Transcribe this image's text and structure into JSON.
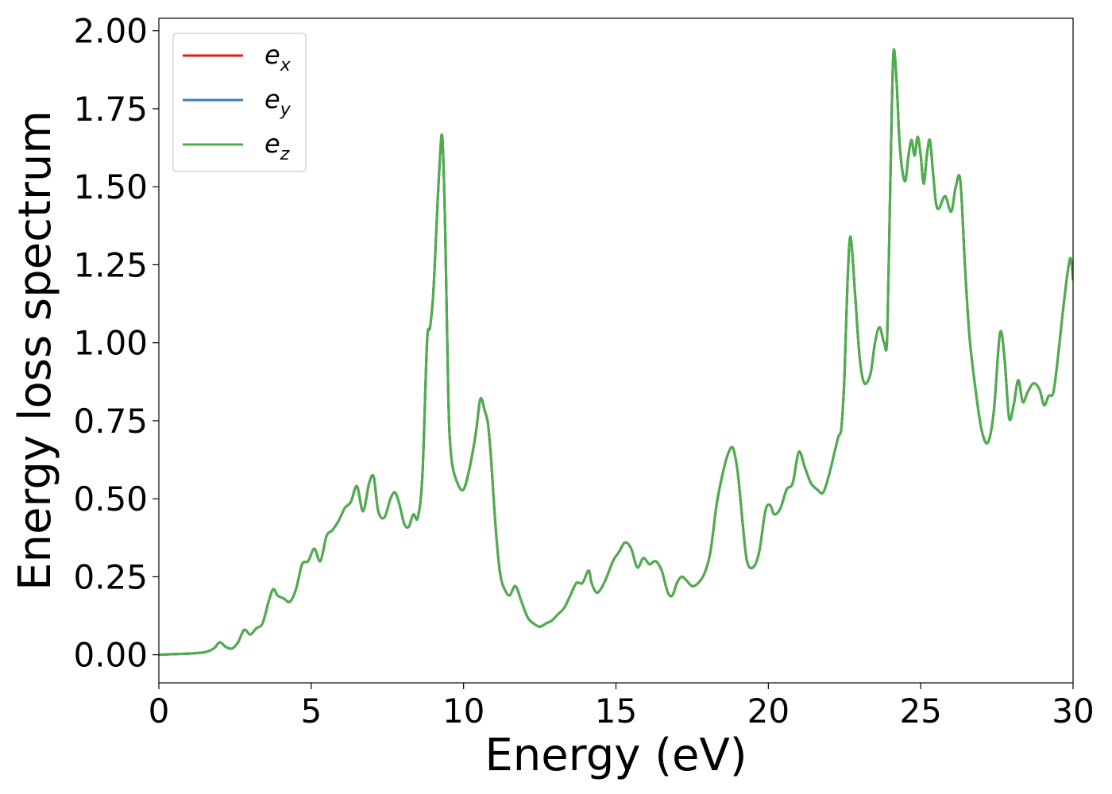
{
  "chart_data": {
    "type": "line",
    "title": "",
    "xlabel": "Energy (eV)",
    "ylabel": "Energy loss spectrum",
    "xlim": [
      0,
      30
    ],
    "ylim": [
      -0.09,
      2.04
    ],
    "xticks": [
      0,
      5,
      10,
      15,
      20,
      25,
      30
    ],
    "xtick_labels": [
      "0",
      "5",
      "10",
      "15",
      "20",
      "25",
      "30"
    ],
    "yticks": [
      0,
      0.25,
      0.5,
      0.75,
      1.0,
      1.25,
      1.5,
      1.75,
      2.0
    ],
    "ytick_labels": [
      "0.00",
      "0.25",
      "0.50",
      "0.75",
      "1.00",
      "1.25",
      "1.50",
      "1.75",
      "2.00"
    ],
    "grid": false,
    "legend_position": "top-left",
    "series": [
      {
        "name": "e",
        "subscript": "x",
        "color": "#e41a1c",
        "values_ref": "shared"
      },
      {
        "name": "e",
        "subscript": "y",
        "color": "#377eb8",
        "values_ref": "shared"
      },
      {
        "name": "e",
        "subscript": "z",
        "color": "#4daf4a",
        "values_ref": "shared"
      }
    ],
    "x": [
      0,
      0.5,
      1.0,
      1.5,
      1.8,
      2.0,
      2.2,
      2.4,
      2.6,
      2.8,
      3.0,
      3.2,
      3.4,
      3.6,
      3.75,
      3.9,
      4.1,
      4.3,
      4.5,
      4.7,
      4.9,
      5.1,
      5.3,
      5.5,
      5.7,
      5.9,
      6.1,
      6.3,
      6.5,
      6.7,
      6.9,
      7.05,
      7.2,
      7.4,
      7.6,
      7.75,
      7.9,
      8.05,
      8.2,
      8.35,
      8.5,
      8.65,
      8.8,
      8.9,
      9.0,
      9.1,
      9.2,
      9.3,
      9.4,
      9.5,
      9.6,
      9.8,
      10.0,
      10.2,
      10.4,
      10.55,
      10.7,
      10.8,
      10.9,
      11.0,
      11.1,
      11.2,
      11.3,
      11.5,
      11.7,
      11.9,
      12.1,
      12.3,
      12.5,
      12.7,
      12.9,
      13.1,
      13.3,
      13.5,
      13.7,
      13.9,
      14.1,
      14.2,
      14.35,
      14.5,
      14.7,
      14.9,
      15.1,
      15.3,
      15.5,
      15.7,
      15.9,
      16.1,
      16.3,
      16.5,
      16.7,
      16.85,
      17.0,
      17.15,
      17.3,
      17.5,
      17.7,
      17.9,
      18.1,
      18.3,
      18.5,
      18.7,
      18.85,
      19.0,
      19.15,
      19.3,
      19.5,
      19.7,
      19.9,
      20.05,
      20.2,
      20.4,
      20.6,
      20.8,
      21.0,
      21.2,
      21.4,
      21.6,
      21.8,
      22.0,
      22.2,
      22.3,
      22.4,
      22.5,
      22.6,
      22.7,
      22.85,
      23.0,
      23.15,
      23.35,
      23.5,
      23.65,
      23.8,
      23.9,
      24.0,
      24.1,
      24.2,
      24.3,
      24.4,
      24.5,
      24.6,
      24.7,
      24.8,
      24.9,
      25.0,
      25.1,
      25.2,
      25.3,
      25.4,
      25.5,
      25.6,
      25.8,
      26.0,
      26.15,
      26.3,
      26.45,
      26.6,
      26.8,
      27.0,
      27.2,
      27.4,
      27.6,
      27.75,
      27.9,
      28.05,
      28.2,
      28.35,
      28.5,
      28.7,
      28.9,
      29.05,
      29.2,
      29.35,
      29.5,
      29.7,
      29.9,
      30.0
    ],
    "values": [
      0.0,
      0.002,
      0.004,
      0.008,
      0.02,
      0.04,
      0.025,
      0.02,
      0.04,
      0.08,
      0.065,
      0.085,
      0.1,
      0.17,
      0.21,
      0.19,
      0.18,
      0.17,
      0.21,
      0.29,
      0.3,
      0.34,
      0.3,
      0.38,
      0.4,
      0.43,
      0.47,
      0.49,
      0.54,
      0.46,
      0.55,
      0.57,
      0.46,
      0.44,
      0.5,
      0.52,
      0.48,
      0.42,
      0.41,
      0.45,
      0.44,
      0.58,
      1.0,
      1.05,
      1.15,
      1.35,
      1.55,
      1.66,
      1.35,
      0.82,
      0.63,
      0.55,
      0.53,
      0.6,
      0.71,
      0.82,
      0.78,
      0.74,
      0.63,
      0.48,
      0.35,
      0.26,
      0.22,
      0.19,
      0.22,
      0.17,
      0.12,
      0.1,
      0.09,
      0.1,
      0.11,
      0.13,
      0.15,
      0.19,
      0.23,
      0.23,
      0.27,
      0.23,
      0.2,
      0.21,
      0.25,
      0.3,
      0.33,
      0.36,
      0.34,
      0.28,
      0.31,
      0.29,
      0.3,
      0.27,
      0.2,
      0.19,
      0.23,
      0.25,
      0.24,
      0.22,
      0.23,
      0.26,
      0.33,
      0.48,
      0.58,
      0.65,
      0.66,
      0.58,
      0.43,
      0.3,
      0.28,
      0.33,
      0.46,
      0.48,
      0.45,
      0.47,
      0.53,
      0.55,
      0.65,
      0.6,
      0.55,
      0.53,
      0.52,
      0.58,
      0.66,
      0.7,
      0.73,
      0.9,
      1.2,
      1.34,
      1.15,
      0.95,
      0.87,
      0.9,
      1.0,
      1.05,
      1.0,
      1.02,
      1.5,
      1.92,
      1.85,
      1.65,
      1.55,
      1.52,
      1.6,
      1.65,
      1.6,
      1.66,
      1.6,
      1.51,
      1.6,
      1.65,
      1.55,
      1.45,
      1.43,
      1.47,
      1.42,
      1.5,
      1.52,
      1.25,
      1.02,
      0.85,
      0.72,
      0.68,
      0.78,
      1.03,
      0.95,
      0.76,
      0.8,
      0.88,
      0.81,
      0.84,
      0.87,
      0.85,
      0.8,
      0.83,
      0.84,
      0.95,
      1.13,
      1.27,
      1.2
    ]
  },
  "legend": {
    "items": [
      {
        "base": "e",
        "sub": "x",
        "color": "#e41a1c"
      },
      {
        "base": "e",
        "sub": "y",
        "color": "#377eb8"
      },
      {
        "base": "e",
        "sub": "z",
        "color": "#4daf4a"
      }
    ]
  }
}
